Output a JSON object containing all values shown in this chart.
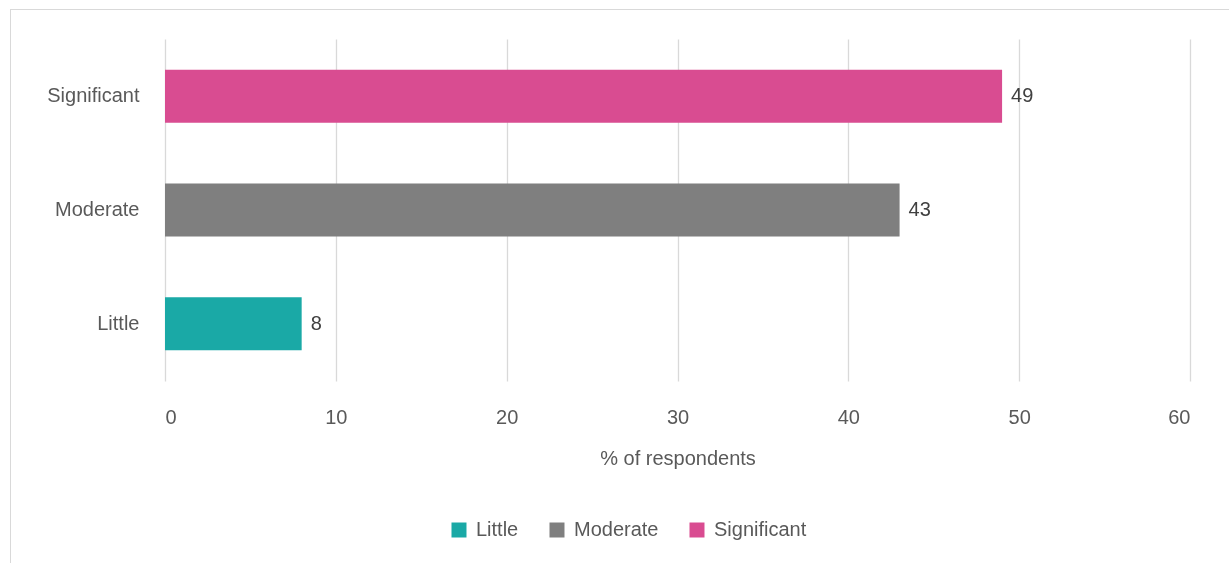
{
  "chart_data": {
    "type": "bar",
    "orientation": "horizontal",
    "categories": [
      "Significant",
      "Moderate",
      "Little"
    ],
    "series": [
      {
        "name": "Little",
        "color": "#1aa9a6",
        "values": [
          null,
          null,
          8
        ]
      },
      {
        "name": "Moderate",
        "color": "#7f7f7f",
        "values": [
          null,
          43,
          null
        ]
      },
      {
        "name": "Significant",
        "color": "#d94c91",
        "values": [
          49,
          null,
          null
        ]
      }
    ],
    "xlabel": "% of respondents",
    "xlim": [
      0,
      60
    ],
    "xticks": [
      0,
      10,
      20,
      30,
      40,
      50,
      60
    ],
    "grid": "x",
    "legend": "bottom",
    "data_labels": true
  }
}
